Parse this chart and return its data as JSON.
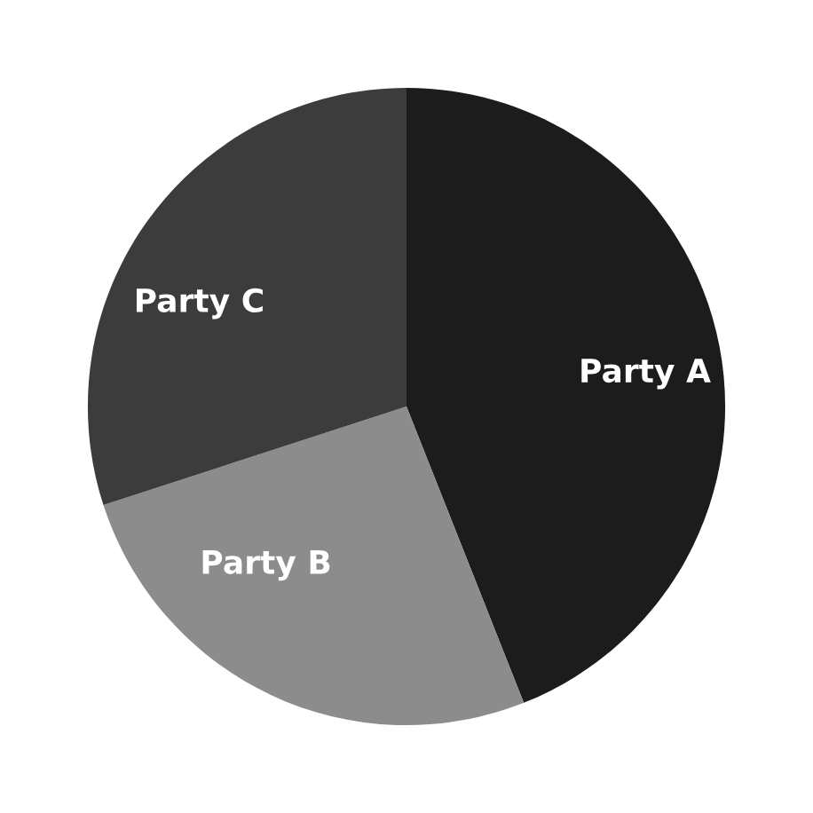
{
  "chart_data": {
    "type": "pie",
    "categories": [
      "Party A",
      "Party B",
      "Party C"
    ],
    "values": [
      44,
      26,
      30
    ],
    "colors": [
      "#1c1c1c",
      "#8c8c8c",
      "#3c3c3c"
    ]
  }
}
